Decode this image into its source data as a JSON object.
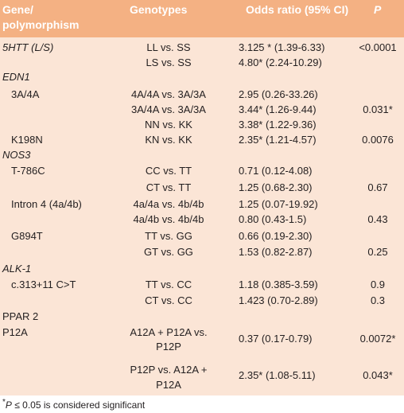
{
  "headers": {
    "gene_line1": "Gene/",
    "gene_line2": "polymorphism",
    "genotypes": "Genotypes",
    "odds_ratio": "Odds ratio (95% CI)",
    "p": "P"
  },
  "rows": {
    "r01": {
      "gene": "5HTT (L/S)",
      "genotype": "LL vs. SS",
      "or": "3.125 * (1.39-6.33)",
      "p": "<0.0001"
    },
    "r02": {
      "genotype": "LS vs. SS",
      "or": "4.80* (2.24-10.29)"
    },
    "r03": {
      "gene": "EDN1"
    },
    "r04": {
      "gene": "3A/4A",
      "genotype": "4A/4A vs. 3A/3A",
      "or": "2.95 (0.26-33.26)"
    },
    "r05": {
      "genotype": "3A/4A vs. 3A/3A",
      "or": "3.44* (1.26-9.44)",
      "p": "0.031*"
    },
    "r06": {
      "genotype": "NN vs. KK",
      "or": "3.38* (1.22-9.36)"
    },
    "r07": {
      "gene": "K198N",
      "genotype": "KN vs. KK",
      "or": "2.35* (1.21-4.57)",
      "p": "0.0076"
    },
    "r08": {
      "gene": "NOS3"
    },
    "r09": {
      "gene": "T-786C",
      "genotype": "CC vs. TT",
      "or": "0.71 (0.12-4.08)"
    },
    "r10": {
      "genotype": "CT vs. TT",
      "or": "1.25 (0.68-2.30)",
      "p": "0.67"
    },
    "r11": {
      "gene": "Intron 4 (4a/4b)",
      "genotype": "4a/4a vs. 4b/4b",
      "or": "1.25 (0.07-19.92)"
    },
    "r12": {
      "genotype": "4a/4b vs. 4b/4b",
      "or": "0.80 (0.43-1.5)",
      "p": "0.43"
    },
    "r13": {
      "gene": "G894T",
      "genotype": "TT vs. GG",
      "or": "0.66 (0.19-2.30)"
    },
    "r14": {
      "genotype": "GT vs. GG",
      "or": "1.53 (0.82-2.87)",
      "p": "0.25"
    },
    "r15": {
      "gene": "ALK-1"
    },
    "r16": {
      "gene": "c.313+11 C>T",
      "genotype": "TT vs. CC",
      "or": "1.18 (0.385-3.59)",
      "p": "0.9"
    },
    "r17": {
      "genotype": "CT vs. CC",
      "or": "1.423 (0.70-2.89)",
      "p": "0.3"
    },
    "r18": {
      "gene": "PPAR 2"
    },
    "r19": {
      "gene": "P12A",
      "genotype_line1": "A12A + P12A vs.",
      "genotype_line2": "P12P",
      "or": "0.37 (0.17-0.79)",
      "p": "0.0072*"
    },
    "r20": {
      "genotype_line1": "P12P vs. A12A +",
      "genotype_line2": "P12A",
      "or": "2.35* (1.08-5.11)",
      "p": "0.043*"
    }
  },
  "footnote": {
    "p_symbol": "P",
    "text": " ≤ 0.05 is considered significant"
  }
}
